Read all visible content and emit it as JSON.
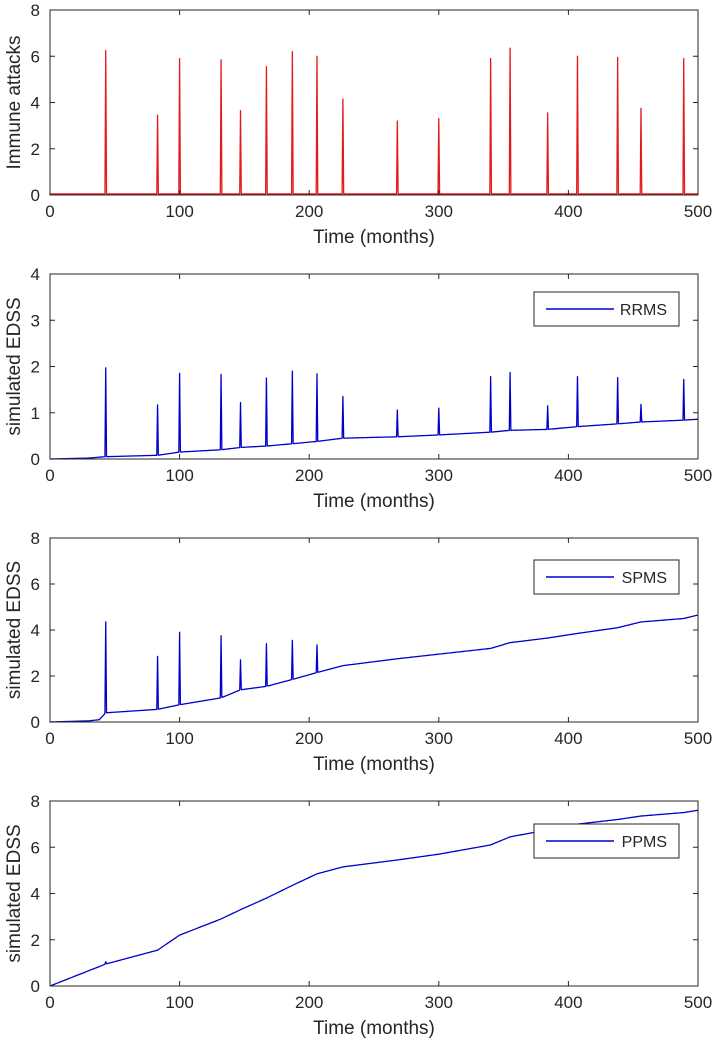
{
  "figure": {
    "title": "",
    "n_panels": 4
  },
  "colors": {
    "attacks": "#e31a1c",
    "edss": "#0000cd",
    "axis": "#262626"
  },
  "chart_data": [
    {
      "type": "line",
      "title": "",
      "xlabel": "Time (months)",
      "ylabel": "Immune attacks",
      "xlim": [
        0,
        500
      ],
      "ylim": [
        0,
        8
      ],
      "xticks": [
        0,
        100,
        200,
        300,
        400,
        500
      ],
      "yticks": [
        0,
        2,
        4,
        6,
        8
      ],
      "legend": null,
      "baseline": 0.05,
      "series": [
        {
          "name": "Immune attacks",
          "color": "#e31a1c",
          "spikes": [
            {
              "t": 43,
              "peak": 6.25
            },
            {
              "t": 83,
              "peak": 3.45
            },
            {
              "t": 100,
              "peak": 5.9
            },
            {
              "t": 132,
              "peak": 5.85
            },
            {
              "t": 147,
              "peak": 3.65
            },
            {
              "t": 167,
              "peak": 5.55
            },
            {
              "t": 187,
              "peak": 6.2
            },
            {
              "t": 206,
              "peak": 6.0
            },
            {
              "t": 226,
              "peak": 4.15
            },
            {
              "t": 268,
              "peak": 3.2
            },
            {
              "t": 300,
              "peak": 3.3
            },
            {
              "t": 340,
              "peak": 5.9
            },
            {
              "t": 355,
              "peak": 6.35
            },
            {
              "t": 384,
              "peak": 3.55
            },
            {
              "t": 407,
              "peak": 6.0
            },
            {
              "t": 438,
              "peak": 5.95
            },
            {
              "t": 456,
              "peak": 3.75
            },
            {
              "t": 489,
              "peak": 5.9
            }
          ]
        }
      ]
    },
    {
      "type": "line",
      "title": "",
      "xlabel": "Time (months)",
      "ylabel": "simulated EDSS",
      "xlim": [
        0,
        500
      ],
      "ylim": [
        0,
        4
      ],
      "xticks": [
        0,
        100,
        200,
        300,
        400,
        500
      ],
      "yticks": [
        0,
        1,
        2,
        3,
        4
      ],
      "legend": {
        "placement": "top-right",
        "entries": [
          "RRMS"
        ]
      },
      "series": [
        {
          "name": "RRMS",
          "color": "#0000cd",
          "baseline": [
            [
              0,
              0
            ],
            [
              30,
              0.02
            ],
            [
              38,
              0.04
            ],
            [
              43,
              0.05
            ],
            [
              83,
              0.08
            ],
            [
              100,
              0.15
            ],
            [
              132,
              0.2
            ],
            [
              147,
              0.25
            ],
            [
              167,
              0.28
            ],
            [
              187,
              0.33
            ],
            [
              206,
              0.38
            ],
            [
              226,
              0.45
            ],
            [
              268,
              0.48
            ],
            [
              300,
              0.52
            ],
            [
              340,
              0.58
            ],
            [
              355,
              0.62
            ],
            [
              384,
              0.64
            ],
            [
              407,
              0.7
            ],
            [
              438,
              0.76
            ],
            [
              456,
              0.8
            ],
            [
              489,
              0.84
            ],
            [
              500,
              0.86
            ]
          ],
          "spikes": [
            {
              "t": 43,
              "peak": 1.97
            },
            {
              "t": 83,
              "peak": 1.17
            },
            {
              "t": 100,
              "peak": 1.85
            },
            {
              "t": 132,
              "peak": 1.83
            },
            {
              "t": 147,
              "peak": 1.22
            },
            {
              "t": 167,
              "peak": 1.75
            },
            {
              "t": 187,
              "peak": 1.9
            },
            {
              "t": 206,
              "peak": 1.84
            },
            {
              "t": 226,
              "peak": 1.35
            },
            {
              "t": 268,
              "peak": 1.06
            },
            {
              "t": 300,
              "peak": 1.1
            },
            {
              "t": 340,
              "peak": 1.78
            },
            {
              "t": 355,
              "peak": 1.87
            },
            {
              "t": 384,
              "peak": 1.15
            },
            {
              "t": 407,
              "peak": 1.78
            },
            {
              "t": 438,
              "peak": 1.76
            },
            {
              "t": 456,
              "peak": 1.18
            },
            {
              "t": 489,
              "peak": 1.72
            }
          ]
        }
      ]
    },
    {
      "type": "line",
      "title": "",
      "xlabel": "Time (months)",
      "ylabel": "simulated EDSS",
      "xlim": [
        0,
        500
      ],
      "ylim": [
        0,
        8
      ],
      "xticks": [
        0,
        100,
        200,
        300,
        400,
        500
      ],
      "yticks": [
        0,
        2,
        4,
        6,
        8
      ],
      "legend": {
        "placement": "top-right",
        "entries": [
          "SPMS"
        ]
      },
      "series": [
        {
          "name": "SPMS",
          "color": "#0000cd",
          "baseline": [
            [
              0,
              0
            ],
            [
              30,
              0.05
            ],
            [
              38,
              0.1
            ],
            [
              43,
              0.4
            ],
            [
              83,
              0.55
            ],
            [
              100,
              0.75
            ],
            [
              132,
              1.05
            ],
            [
              147,
              1.4
            ],
            [
              167,
              1.55
            ],
            [
              187,
              1.85
            ],
            [
              206,
              2.15
            ],
            [
              226,
              2.45
            ],
            [
              268,
              2.75
            ],
            [
              300,
              2.95
            ],
            [
              340,
              3.2
            ],
            [
              355,
              3.45
            ],
            [
              384,
              3.65
            ],
            [
              407,
              3.85
            ],
            [
              438,
              4.1
            ],
            [
              456,
              4.35
            ],
            [
              489,
              4.5
            ],
            [
              500,
              4.65
            ]
          ],
          "spikes": [
            {
              "t": 43,
              "peak": 4.35
            },
            {
              "t": 83,
              "peak": 2.85
            },
            {
              "t": 100,
              "peak": 3.9
            },
            {
              "t": 132,
              "peak": 3.75
            },
            {
              "t": 147,
              "peak": 2.7
            },
            {
              "t": 167,
              "peak": 3.4
            },
            {
              "t": 187,
              "peak": 3.55
            },
            {
              "t": 206,
              "peak": 3.35
            }
          ]
        }
      ]
    },
    {
      "type": "line",
      "title": "",
      "xlabel": "Time (months)",
      "ylabel": "simulated EDSS",
      "xlim": [
        0,
        500
      ],
      "ylim": [
        0,
        8
      ],
      "xticks": [
        0,
        100,
        200,
        300,
        400,
        500
      ],
      "yticks": [
        0,
        2,
        4,
        6,
        8
      ],
      "legend": {
        "placement": "top-right",
        "entries": [
          "PPMS"
        ]
      },
      "series": [
        {
          "name": "PPMS",
          "color": "#0000cd",
          "baseline": [
            [
              0,
              0
            ],
            [
              43,
              0.95
            ],
            [
              83,
              1.55
            ],
            [
              100,
              2.2
            ],
            [
              132,
              2.9
            ],
            [
              147,
              3.3
            ],
            [
              167,
              3.8
            ],
            [
              187,
              4.35
            ],
            [
              206,
              4.85
            ],
            [
              226,
              5.15
            ],
            [
              268,
              5.45
            ],
            [
              300,
              5.7
            ],
            [
              340,
              6.1
            ],
            [
              355,
              6.45
            ],
            [
              384,
              6.75
            ],
            [
              407,
              7.0
            ],
            [
              438,
              7.2
            ],
            [
              456,
              7.35
            ],
            [
              489,
              7.5
            ],
            [
              500,
              7.6
            ]
          ],
          "spikes": [
            {
              "t": 43,
              "peak": 1.05
            }
          ]
        }
      ]
    }
  ]
}
